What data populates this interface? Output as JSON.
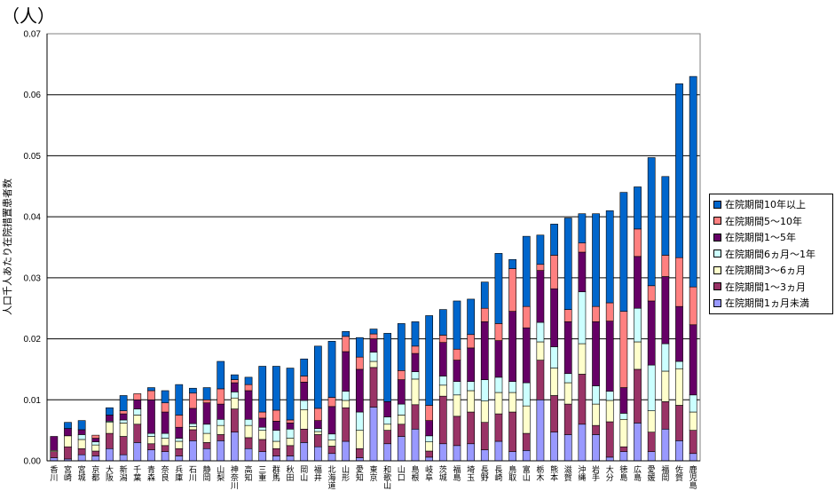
{
  "chart_data": {
    "type": "bar",
    "stacked": true,
    "unit_label": "（人）",
    "ylabel": "人口千人あたり在院措置患者数",
    "ylim": [
      0,
      0.07
    ],
    "yticks": [
      "0.00",
      "0.01",
      "0.02",
      "0.03",
      "0.04",
      "0.05",
      "0.06",
      "0.07"
    ],
    "grid": true,
    "legend_position": "right",
    "categories": [
      "香川",
      "宮崎",
      "宮城",
      "京都",
      "大阪",
      "新潟",
      "千葉",
      "青森",
      "奈良",
      "兵庫",
      "石川",
      "静岡",
      "山梨",
      "神奈川",
      "高知",
      "三重",
      "群馬",
      "秋田",
      "岡山",
      "福井",
      "北海道",
      "山形",
      "愛知",
      "東京",
      "和歌山",
      "山口",
      "島根",
      "岐阜",
      "茨城",
      "福島",
      "埼玉",
      "長野",
      "長崎",
      "鳥取",
      "富山",
      "栃木",
      "熊本",
      "滋賀",
      "沖縄",
      "岩手",
      "大分",
      "徳島",
      "広島",
      "愛媛",
      "福岡",
      "佐賀",
      "鹿児島"
    ],
    "series": [
      {
        "name": "在院期間1ヵ月未満",
        "color": "#9999FF",
        "values": [
          0.0005,
          0.0003,
          0.001,
          0.0008,
          0.002,
          0.001,
          0.003,
          0.0018,
          0.0015,
          0.0008,
          0.0033,
          0.002,
          0.0033,
          0.0047,
          0.002,
          0.0015,
          0.0008,
          0.0008,
          0.003,
          0.0023,
          0.0012,
          0.0032,
          0.0005,
          0.0088,
          0.0028,
          0.004,
          0.0052,
          0.0006,
          0.0028,
          0.0025,
          0.0028,
          0.0018,
          0.0032,
          0.0015,
          0.0017,
          0.01,
          0.0047,
          0.0043,
          0.006,
          0.0043,
          0.0006,
          0.0015,
          0.0062,
          0.0015,
          0.0052,
          0.0033,
          0.0012
        ]
      },
      {
        "name": "在院期間1～3ヵ月",
        "color": "#993366",
        "values": [
          0.001,
          0.002,
          0.001,
          0.0008,
          0.0025,
          0.003,
          0.003,
          0.001,
          0.001,
          0.0012,
          0.0018,
          0.001,
          0.001,
          0.0038,
          0.0018,
          0.002,
          0.0012,
          0.0017,
          0.0022,
          0.002,
          0.0012,
          0.0055,
          0.0015,
          0.0065,
          0.0022,
          0.002,
          0.004,
          0.001,
          0.0078,
          0.0048,
          0.0052,
          0.0045,
          0.0045,
          0.0065,
          0.0028,
          0.0065,
          0.006,
          0.005,
          0.0082,
          0.0015,
          0.0058,
          0.0008,
          0.0088,
          0.0032,
          0.0045,
          0.0058,
          0.0038
        ]
      },
      {
        "name": "在院期間3～6ヵ月",
        "color": "#FFFFCC",
        "values": [
          0.0002,
          0.0018,
          0.0015,
          0.001,
          0.0018,
          0.0022,
          0.0015,
          0.0012,
          0.0012,
          0.0012,
          0.0005,
          0.0015,
          0.0015,
          0.0018,
          0.002,
          0.0015,
          0.0012,
          0.0012,
          0.0032,
          0.0005,
          0.001,
          0.0012,
          0.003,
          0.001,
          0.001,
          0.0015,
          0.0042,
          0.0015,
          0.0018,
          0.0035,
          0.0035,
          0.0035,
          0.0035,
          0.0032,
          0.0045,
          0.003,
          0.0045,
          0.0035,
          0.005,
          0.0035,
          0.0035,
          0.0045,
          0.0045,
          0.0035,
          0.005,
          0.006,
          0.003
        ]
      },
      {
        "name": "在院期間6ヵ月～1年",
        "color": "#CCFFFF",
        "values": [
          0,
          0,
          0.0008,
          0.0005,
          0.0002,
          0.0005,
          0.001,
          0.0005,
          0.0008,
          0.0005,
          0.0005,
          0.0015,
          0.001,
          0.001,
          0.001,
          0.0005,
          0.0018,
          0.0015,
          0.0015,
          0.0005,
          0.001,
          0.0015,
          0.003,
          0.0015,
          0.0012,
          0.0018,
          0.0012,
          0.001,
          0.0015,
          0.0022,
          0.0015,
          0.0035,
          0.0025,
          0.0018,
          0.0038,
          0.0032,
          0.0035,
          0.0015,
          0.0085,
          0.003,
          0.0015,
          0.001,
          0.0055,
          0.0075,
          0.0045,
          0.0012,
          0.0028
        ]
      },
      {
        "name": "在院期間1～5年",
        "color": "#660066",
        "values": [
          0.0023,
          0.0012,
          0.0008,
          0.0006,
          0.001,
          0.001,
          0.0015,
          0.0055,
          0.0035,
          0.0018,
          0.0025,
          0.0035,
          0.0025,
          0.0015,
          0.0047,
          0.0015,
          0.0015,
          0.001,
          0.003,
          0.0013,
          0.0045,
          0.0065,
          0.007,
          0.0022,
          0.0025,
          0.004,
          0.003,
          0.0025,
          0.0055,
          0.0035,
          0.0055,
          0.0095,
          0.006,
          0.0115,
          0.009,
          0.0085,
          0.0095,
          0.0085,
          0.0065,
          0.0105,
          0.0115,
          0.0042,
          0.0085,
          0.0105,
          0.011,
          0.009,
          0.0115
        ]
      },
      {
        "name": "在院期間5～10年",
        "color": "#FF8080",
        "values": [
          0,
          0,
          0,
          0.0005,
          0,
          0.0005,
          0.001,
          0.0015,
          0.0015,
          0.002,
          0.0025,
          0.0005,
          0.0025,
          0.0005,
          0.001,
          0.001,
          0.0018,
          0.0005,
          0.001,
          0.002,
          0.0015,
          0.0025,
          0.002,
          0.0008,
          0,
          0.0015,
          0.0012,
          0.0025,
          0.0012,
          0.0018,
          0.0022,
          0.0022,
          0.0028,
          0.007,
          0.0035,
          0.001,
          0.0055,
          0.002,
          0.0015,
          0.0025,
          0.003,
          0.0125,
          0.0045,
          0.0025,
          0.0035,
          0.008,
          0.0062
        ]
      },
      {
        "name": "在院期間10年以上",
        "color": "#0066CC",
        "values": [
          0,
          0.001,
          0.0015,
          0,
          0.0012,
          0.0025,
          0,
          0.0005,
          0.002,
          0.005,
          0.0008,
          0.002,
          0.0045,
          0.0008,
          0.0012,
          0.0075,
          0.0072,
          0.0085,
          0.0028,
          0.0102,
          0.0092,
          0.0008,
          0.0032,
          0.0008,
          0.0112,
          0.0077,
          0.004,
          0.0147,
          0.0042,
          0.0079,
          0.0058,
          0.0043,
          0.0115,
          0.0015,
          0.0115,
          0.0048,
          0.0051,
          0.015,
          0.0048,
          0.0152,
          0.0151,
          0.0195,
          0.0069,
          0.021,
          0.0129,
          0.0285,
          0.0345
        ]
      }
    ]
  }
}
